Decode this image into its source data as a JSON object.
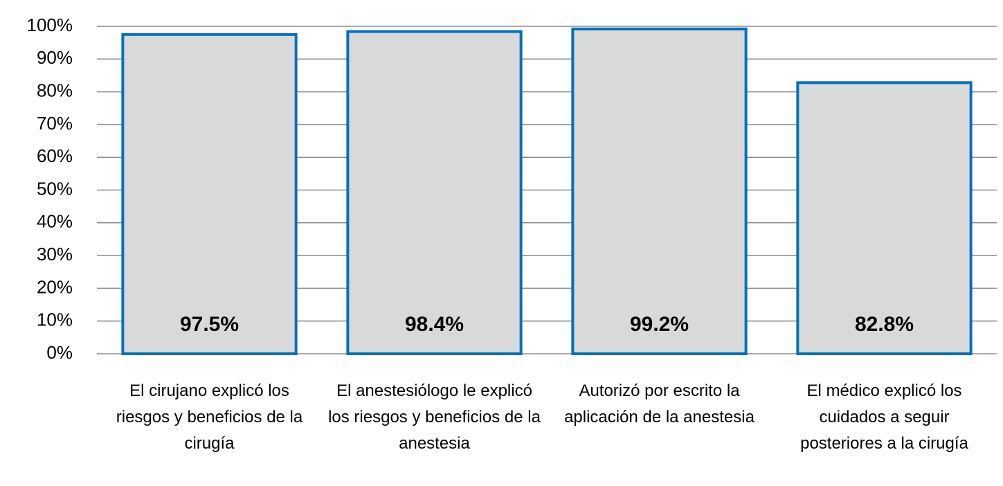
{
  "chart_data": {
    "type": "bar",
    "categories": [
      "El cirujano explicó los riesgos y beneficios de la cirugía",
      "El anestesiólogo le explicó los riesgos y beneficios de la anestesia",
      "Autorizó por escrito la aplicación de la anestesia",
      "El médico explicó los cuidados a seguir posteriores a la cirugía"
    ],
    "values": [
      97.5,
      98.4,
      99.2,
      82.8
    ],
    "value_labels": [
      "97.5%",
      "98.4%",
      "99.2%",
      "82.8%"
    ],
    "color": "#d9d9d9",
    "edge_color": "#0070c0",
    "ylim": [
      0,
      100
    ],
    "yticks": [
      {
        "value": 0,
        "label": "0%"
      },
      {
        "value": 10,
        "label": "10%"
      },
      {
        "value": 20,
        "label": "20%"
      },
      {
        "value": 30,
        "label": "30%"
      },
      {
        "value": 40,
        "label": "40%"
      },
      {
        "value": 50,
        "label": "50%"
      },
      {
        "value": 60,
        "label": "60%"
      },
      {
        "value": 70,
        "label": "70%"
      },
      {
        "value": 80,
        "label": "80%"
      },
      {
        "value": 90,
        "label": "90%"
      },
      {
        "value": 100,
        "label": "100%"
      }
    ],
    "grid": true
  }
}
